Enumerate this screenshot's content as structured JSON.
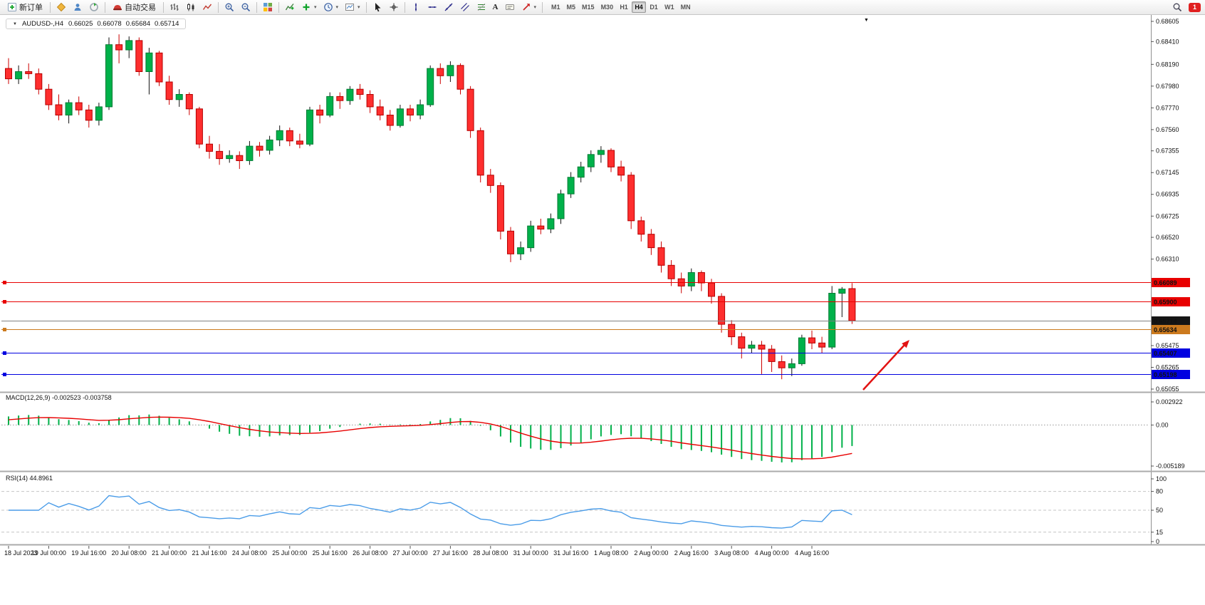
{
  "toolbar": {
    "new_order_label": "新订单",
    "auto_trading_label": "自动交易",
    "timeframes": [
      "M1",
      "M5",
      "M15",
      "M30",
      "H1",
      "H4",
      "D1",
      "W1",
      "MN"
    ],
    "active_timeframe": "H4",
    "notification_count": "1",
    "text_tool_glyph": "A",
    "dropdown_glyph": "▾"
  },
  "chart_header": {
    "collapse_glyph": "▼",
    "corner_glyph": "▼",
    "symbol": "AUDUSD-,H4",
    "open": "0.66025",
    "high": "0.66078",
    "low": "0.65684",
    "close": "0.65714"
  },
  "colors": {
    "bull": "#00b14a",
    "bull_border": "#007a33",
    "bear": "#fe2e2e",
    "bear_border": "#b50000",
    "wick_up": "#111111",
    "wick_down": "#cc0000",
    "line_red": "#e80000",
    "line_blue": "#0000e0",
    "line_orange": "#cc7a1e",
    "bid_line": "#808080",
    "bid_label_bg": "#151515",
    "macd_histogram": "#00b14a",
    "macd_signal": "#e80000",
    "rsi_line": "#4a9ce8",
    "arrow": "#e21212"
  },
  "price_axis": {
    "ticks": [
      "0.68605",
      "0.68410",
      "0.68190",
      "0.67980",
      "0.67770",
      "0.67560",
      "0.67355",
      "0.67145",
      "0.66935",
      "0.66725",
      "0.66520",
      "0.66310",
      "0.65475",
      "0.65265",
      "0.65055"
    ]
  },
  "price_lines": [
    {
      "label": "0.66089",
      "price": 0.66089,
      "color": "line_red"
    },
    {
      "label": "0.65900",
      "price": 0.659,
      "color": "line_red"
    },
    {
      "label": "0.65714",
      "price": 0.65714,
      "color": "bid_line",
      "label_bg": "bid_label_bg",
      "type": "bid"
    },
    {
      "label": "0.65634",
      "price": 0.65634,
      "color": "line_orange"
    },
    {
      "label": "0.65407",
      "price": 0.65407,
      "color": "line_blue"
    },
    {
      "label": "0.65198",
      "price": 0.65198,
      "color": "line_blue"
    }
  ],
  "macd": {
    "name": "MACD(12,26,9)",
    "main_value": "-0.002523",
    "signal_value": "-0.003758",
    "axis": [
      "0.002922",
      "0.00",
      "-0.005189"
    ]
  },
  "rsi": {
    "name": "RSI(14)",
    "value": "44.8961",
    "axis": [
      "100",
      "80",
      "50",
      "15",
      "0"
    ],
    "dashed_levels": [
      80,
      50,
      15
    ]
  },
  "time_axis": {
    "candles_per_label": 4,
    "labels": [
      "18 Jul 2023",
      "19 Jul 00:00",
      "19 Jul 16:00",
      "20 Jul 08:00",
      "21 Jul 00:00",
      "21 Jul 16:00",
      "24 Jul 08:00",
      "25 Jul 00:00",
      "25 Jul 16:00",
      "26 Jul 08:00",
      "27 Jul 00:00",
      "27 Jul 16:00",
      "28 Jul 08:00",
      "31 Jul 00:00",
      "31 Jul 16:00",
      "1 Aug 08:00",
      "2 Aug 00:00",
      "2 Aug 16:00",
      "3 Aug 08:00",
      "4 Aug 00:00",
      "4 Aug 16:00"
    ]
  },
  "chart_data": {
    "type": "candlestick",
    "symbol": "AUDUSD-",
    "timeframe": "H4",
    "ylim": [
      0.65055,
      0.68605
    ],
    "current": {
      "open": 0.66025,
      "high": 0.66078,
      "low": 0.65684,
      "close": 0.65714
    },
    "ohlc": [
      [
        0.6815,
        0.6825,
        0.68,
        0.6805
      ],
      [
        0.6805,
        0.6818,
        0.68,
        0.6812
      ],
      [
        0.6812,
        0.682,
        0.6805,
        0.681
      ],
      [
        0.681,
        0.6815,
        0.679,
        0.6795
      ],
      [
        0.6795,
        0.68,
        0.6775,
        0.678
      ],
      [
        0.678,
        0.679,
        0.6765,
        0.677
      ],
      [
        0.677,
        0.6785,
        0.6762,
        0.6782
      ],
      [
        0.6782,
        0.6788,
        0.677,
        0.6775
      ],
      [
        0.6775,
        0.678,
        0.6758,
        0.6765
      ],
      [
        0.6765,
        0.6782,
        0.676,
        0.6778
      ],
      [
        0.6778,
        0.6845,
        0.6775,
        0.6838
      ],
      [
        0.6838,
        0.6848,
        0.682,
        0.6833
      ],
      [
        0.6833,
        0.6846,
        0.6825,
        0.6842
      ],
      [
        0.6842,
        0.6845,
        0.6808,
        0.6812
      ],
      [
        0.6812,
        0.6835,
        0.679,
        0.683
      ],
      [
        0.683,
        0.6832,
        0.6798,
        0.6802
      ],
      [
        0.6802,
        0.6808,
        0.678,
        0.6785
      ],
      [
        0.6785,
        0.6795,
        0.6778,
        0.679
      ],
      [
        0.679,
        0.6792,
        0.677,
        0.6776
      ],
      [
        0.6776,
        0.6778,
        0.6738,
        0.6742
      ],
      [
        0.6742,
        0.675,
        0.6728,
        0.6735
      ],
      [
        0.6735,
        0.6742,
        0.6722,
        0.6728
      ],
      [
        0.6728,
        0.6736,
        0.6724,
        0.6731
      ],
      [
        0.6731,
        0.6735,
        0.6718,
        0.6726
      ],
      [
        0.6726,
        0.6745,
        0.6722,
        0.674
      ],
      [
        0.674,
        0.6744,
        0.673,
        0.6736
      ],
      [
        0.6736,
        0.675,
        0.6732,
        0.6746
      ],
      [
        0.6746,
        0.676,
        0.674,
        0.6755
      ],
      [
        0.6755,
        0.6758,
        0.674,
        0.6745
      ],
      [
        0.6745,
        0.6752,
        0.6738,
        0.6742
      ],
      [
        0.6742,
        0.6778,
        0.674,
        0.6775
      ],
      [
        0.6775,
        0.678,
        0.6762,
        0.677
      ],
      [
        0.677,
        0.6792,
        0.6768,
        0.6788
      ],
      [
        0.6788,
        0.6792,
        0.6776,
        0.6784
      ],
      [
        0.6784,
        0.6798,
        0.678,
        0.6795
      ],
      [
        0.6795,
        0.68,
        0.6785,
        0.679
      ],
      [
        0.679,
        0.6794,
        0.6772,
        0.6778
      ],
      [
        0.6778,
        0.6785,
        0.6765,
        0.677
      ],
      [
        0.677,
        0.6775,
        0.6755,
        0.676
      ],
      [
        0.676,
        0.678,
        0.6758,
        0.6776
      ],
      [
        0.6776,
        0.678,
        0.6764,
        0.677
      ],
      [
        0.677,
        0.6785,
        0.6766,
        0.678
      ],
      [
        0.678,
        0.6818,
        0.6778,
        0.6815
      ],
      [
        0.6815,
        0.682,
        0.68,
        0.6808
      ],
      [
        0.6808,
        0.6822,
        0.6802,
        0.6818
      ],
      [
        0.6818,
        0.682,
        0.679,
        0.6795
      ],
      [
        0.6795,
        0.6798,
        0.6748,
        0.6755
      ],
      [
        0.6755,
        0.6758,
        0.6705,
        0.6712
      ],
      [
        0.6712,
        0.6718,
        0.6695,
        0.6702
      ],
      [
        0.6702,
        0.6705,
        0.665,
        0.6658
      ],
      [
        0.6658,
        0.6662,
        0.6628,
        0.6636
      ],
      [
        0.6636,
        0.6648,
        0.663,
        0.6642
      ],
      [
        0.6642,
        0.6668,
        0.6638,
        0.6663
      ],
      [
        0.6663,
        0.667,
        0.6655,
        0.666
      ],
      [
        0.666,
        0.6675,
        0.6656,
        0.667
      ],
      [
        0.667,
        0.6698,
        0.6665,
        0.6694
      ],
      [
        0.6694,
        0.6715,
        0.669,
        0.671
      ],
      [
        0.671,
        0.6725,
        0.6705,
        0.672
      ],
      [
        0.672,
        0.6736,
        0.6715,
        0.6732
      ],
      [
        0.6732,
        0.674,
        0.6724,
        0.6736
      ],
      [
        0.6736,
        0.6738,
        0.6715,
        0.672
      ],
      [
        0.672,
        0.6726,
        0.6706,
        0.6712
      ],
      [
        0.6712,
        0.6715,
        0.666,
        0.6668
      ],
      [
        0.6668,
        0.6672,
        0.6648,
        0.6655
      ],
      [
        0.6655,
        0.666,
        0.6635,
        0.6642
      ],
      [
        0.6642,
        0.6648,
        0.6618,
        0.6625
      ],
      [
        0.6625,
        0.663,
        0.6605,
        0.6612
      ],
      [
        0.6612,
        0.6618,
        0.6598,
        0.6605
      ],
      [
        0.6605,
        0.6622,
        0.66,
        0.6618
      ],
      [
        0.6618,
        0.662,
        0.66,
        0.6608
      ],
      [
        0.6608,
        0.6612,
        0.6588,
        0.6595
      ],
      [
        0.6595,
        0.6598,
        0.656,
        0.6568
      ],
      [
        0.6568,
        0.6572,
        0.6548,
        0.6556
      ],
      [
        0.6556,
        0.656,
        0.6535,
        0.6545
      ],
      [
        0.6545,
        0.6552,
        0.654,
        0.6548
      ],
      [
        0.6548,
        0.6552,
        0.652,
        0.6544
      ],
      [
        0.6544,
        0.6548,
        0.6522,
        0.6532
      ],
      [
        0.6532,
        0.6538,
        0.6515,
        0.6526
      ],
      [
        0.6526,
        0.6535,
        0.6518,
        0.653
      ],
      [
        0.653,
        0.6558,
        0.6528,
        0.6555
      ],
      [
        0.6555,
        0.6562,
        0.6544,
        0.655
      ],
      [
        0.655,
        0.6556,
        0.654,
        0.6546
      ],
      [
        0.6546,
        0.6605,
        0.6544,
        0.6598
      ],
      [
        0.6598,
        0.6604,
        0.6575,
        0.6602
      ],
      [
        0.66025,
        0.66078,
        0.65684,
        0.65714
      ]
    ]
  }
}
